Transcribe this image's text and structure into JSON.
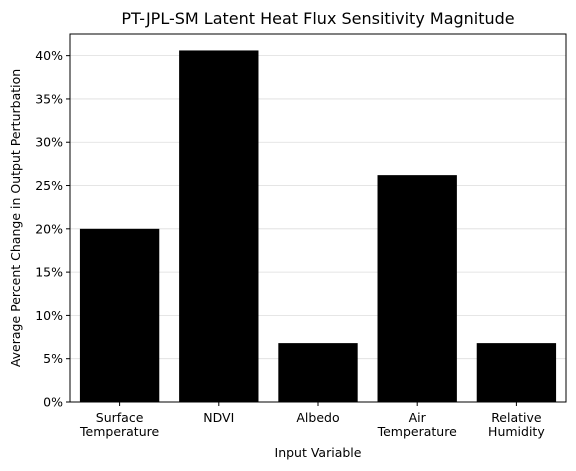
{
  "chart_data": {
    "type": "bar",
    "title": "PT-JPL-SM Latent Heat Flux Sensitivity Magnitude",
    "xlabel": "Input Variable",
    "ylabel": "Average Percent Change in Output Perturbation",
    "categories": [
      "Surface\nTemperature",
      "NDVI",
      "Albedo",
      "Air\nTemperature",
      "Relative\nHumidity"
    ],
    "values": [
      20.0,
      40.6,
      6.8,
      26.2,
      6.8
    ],
    "ylim": [
      0,
      42.5
    ],
    "yticks": [
      0,
      5,
      10,
      15,
      20,
      25,
      30,
      35,
      40
    ],
    "ytick_labels": [
      "0%",
      "5%",
      "10%",
      "15%",
      "20%",
      "25%",
      "30%",
      "35%",
      "40%"
    ],
    "grid": "y",
    "bar_color": "#000000",
    "grid_color": "#dddddd"
  }
}
